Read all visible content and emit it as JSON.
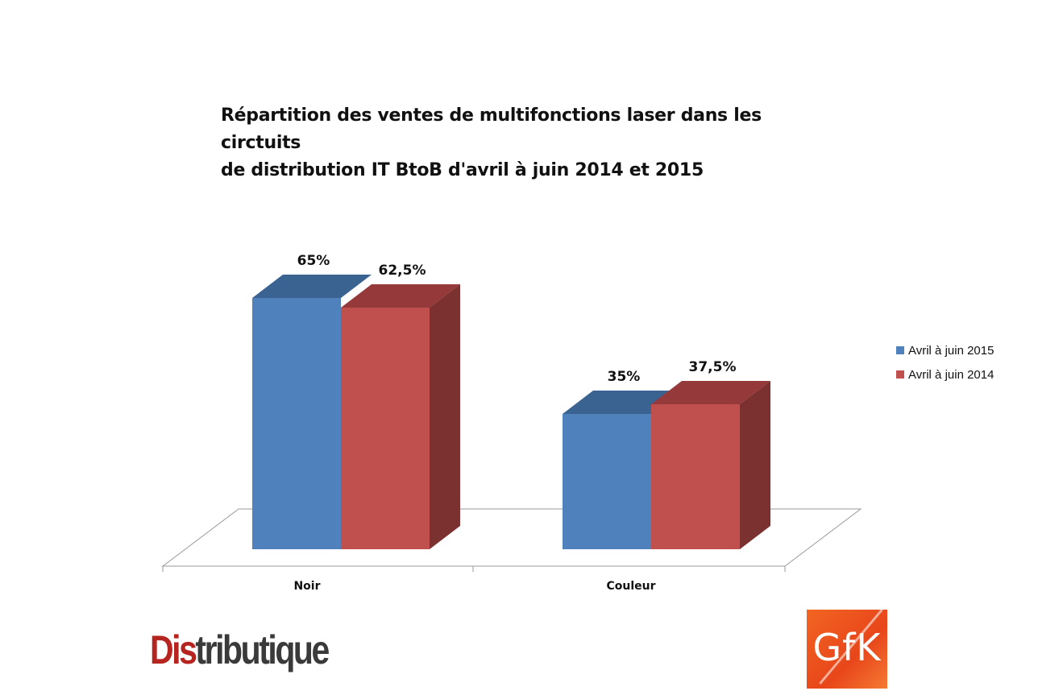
{
  "chart_data": {
    "type": "bar",
    "title_lines": [
      "Répartition des ventes de multifonctions laser dans les circtuits",
      "de distribution IT BtoB d'avril à juin 2014 et 2015"
    ],
    "categories": [
      "Noir",
      "Couleur"
    ],
    "series": [
      {
        "name": "Avril à juin 2015",
        "values": [
          65,
          35
        ],
        "labels": [
          "65%",
          "35%"
        ],
        "color": "#4f81bd",
        "top_color": "#3b6391"
      },
      {
        "name": "Avril à juin 2014",
        "values": [
          62.5,
          37.5
        ],
        "labels": [
          "62,5%",
          "37,5%"
        ],
        "color": "#c0504d",
        "top_color": "#96393a",
        "side_color": "#7b3130"
      }
    ],
    "ylim": [
      0,
      100
    ],
    "grid": false,
    "legend_position": "right",
    "three_d": true
  },
  "logos": {
    "left_part1": "Dis",
    "left_part2": "tributique",
    "right": "GfK"
  }
}
